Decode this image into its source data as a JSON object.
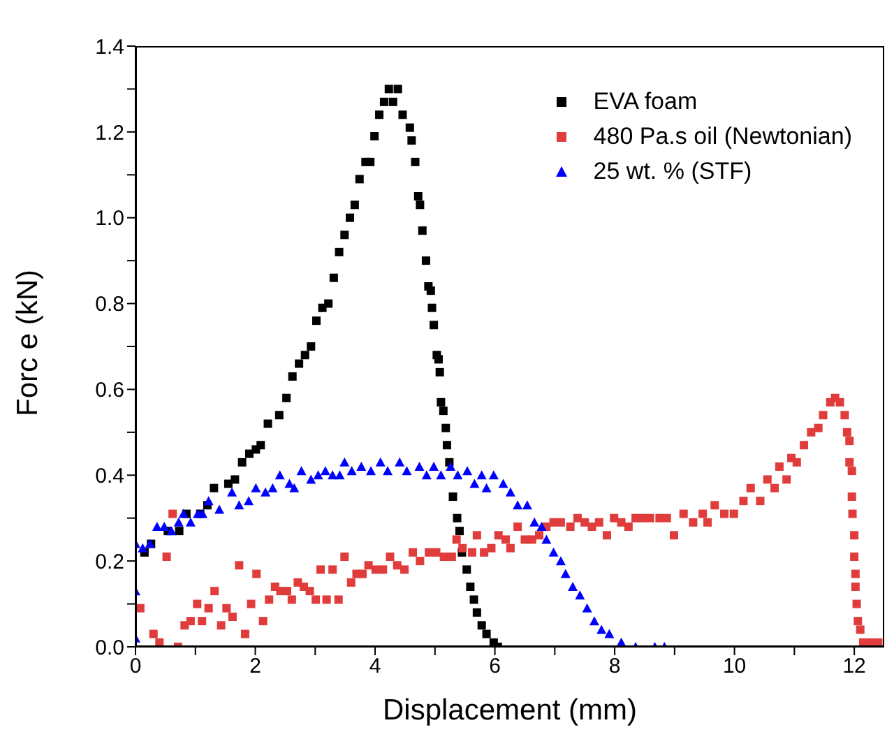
{
  "chart_data": {
    "type": "scatter",
    "xlabel": "Displacement (mm)",
    "ylabel": "Forc e (kN)",
    "xlim": [
      0,
      12.5
    ],
    "ylim": [
      0,
      1.4
    ],
    "xticks": [
      0,
      {
        "value": 1,
        "label": null
      },
      2,
      {
        "value": 3,
        "label": null
      },
      4,
      {
        "value": 5,
        "label": null
      },
      6,
      {
        "value": 7,
        "label": null
      },
      8,
      {
        "value": 9,
        "label": null
      },
      10,
      {
        "value": 11,
        "label": null
      },
      12
    ],
    "yticks": [
      {
        "value": 0,
        "label": "0.0"
      },
      {
        "value": 0.1,
        "label": null
      },
      {
        "value": 0.2,
        "label": "0.2"
      },
      {
        "value": 0.3,
        "label": null
      },
      {
        "value": 0.4,
        "label": "0.4"
      },
      {
        "value": 0.5,
        "label": null
      },
      {
        "value": 0.6,
        "label": "0.6"
      },
      {
        "value": 0.7,
        "label": null
      },
      {
        "value": 0.8,
        "label": "0.8"
      },
      {
        "value": 0.9,
        "label": null
      },
      {
        "value": 1.0,
        "label": "1.0"
      },
      {
        "value": 1.1,
        "label": null
      },
      {
        "value": 1.2,
        "label": "1.2"
      },
      {
        "value": 1.3,
        "label": null
      },
      {
        "value": 1.4,
        "label": "1.4"
      }
    ],
    "grid": false,
    "legend": "top right",
    "series": [
      {
        "name": "EVA foam",
        "color": "#000000",
        "marker": "square",
        "x": [
          0.15,
          0.26,
          0.54,
          0.73,
          0.85,
          1.08,
          1.2,
          1.31,
          1.55,
          1.66,
          1.78,
          1.9,
          2.01,
          2.09,
          2.21,
          2.4,
          2.52,
          2.62,
          2.73,
          2.83,
          2.93,
          3.02,
          3.12,
          3.22,
          3.31,
          3.4,
          3.49,
          3.58,
          3.66,
          3.74,
          3.84,
          3.92,
          3.99,
          4.07,
          4.15,
          4.23,
          4.3,
          4.38,
          4.46,
          4.58,
          4.61,
          4.67,
          4.72,
          4.75,
          4.79,
          4.85,
          4.89,
          4.93,
          4.95,
          4.98,
          5.03,
          5.06,
          5.08,
          5.1,
          5.14,
          5.18,
          5.2,
          5.24,
          5.3,
          5.37,
          5.41,
          5.45,
          5.53,
          5.59,
          5.65,
          5.7,
          5.78,
          5.86,
          5.98,
          6.05
        ],
        "values": [
          0.22,
          0.24,
          0.27,
          0.27,
          0.31,
          0.31,
          0.33,
          0.37,
          0.38,
          0.39,
          0.43,
          0.45,
          0.46,
          0.47,
          0.52,
          0.54,
          0.58,
          0.63,
          0.66,
          0.68,
          0.7,
          0.76,
          0.79,
          0.8,
          0.86,
          0.92,
          0.96,
          1.0,
          1.03,
          1.09,
          1.13,
          1.13,
          1.19,
          1.24,
          1.27,
          1.3,
          1.27,
          1.3,
          1.24,
          1.21,
          1.18,
          1.13,
          1.05,
          1.03,
          0.97,
          0.9,
          0.84,
          0.83,
          0.79,
          0.75,
          0.68,
          0.67,
          0.64,
          0.57,
          0.55,
          0.51,
          0.47,
          0.43,
          0.35,
          0.3,
          0.27,
          0.22,
          0.18,
          0.14,
          0.11,
          0.08,
          0.05,
          0.03,
          0.01,
          0.0
        ]
      },
      {
        "name": "480 Pa.s oil (Newtonian)",
        "color": "#e03c3c",
        "marker": "square",
        "x": [
          0.08,
          0.3,
          0.4,
          0.52,
          0.62,
          0.71,
          0.82,
          0.92,
          1.03,
          1.11,
          1.22,
          1.32,
          1.43,
          1.52,
          1.62,
          1.73,
          1.83,
          1.93,
          2.02,
          2.13,
          2.23,
          2.33,
          2.42,
          2.53,
          2.61,
          2.71,
          2.81,
          2.91,
          3.01,
          3.09,
          3.19,
          3.29,
          3.39,
          3.49,
          3.6,
          3.69,
          3.79,
          3.89,
          4.01,
          4.13,
          4.25,
          4.37,
          4.49,
          4.63,
          4.75,
          4.9,
          5.02,
          5.15,
          5.28,
          5.36,
          5.46,
          5.62,
          5.7,
          5.82,
          5.94,
          6.06,
          6.18,
          6.26,
          6.38,
          6.5,
          6.62,
          6.74,
          6.86,
          6.98,
          7.1,
          7.26,
          7.38,
          7.5,
          7.62,
          7.74,
          7.87,
          7.99,
          8.11,
          8.23,
          8.35,
          8.47,
          8.59,
          8.75,
          8.87,
          8.99,
          9.15,
          9.31,
          9.47,
          9.55,
          9.67,
          9.83,
          9.99,
          10.15,
          10.27,
          10.43,
          10.55,
          10.67,
          10.75,
          10.87,
          10.95,
          11.04,
          11.16,
          11.28,
          11.4,
          11.48,
          11.6,
          11.68,
          11.76,
          11.84,
          11.88,
          11.92,
          11.92,
          11.96,
          11.96,
          11.97,
          12.0,
          12.0,
          12.02,
          12.02,
          12.04,
          12.06,
          12.1,
          12.15,
          12.28,
          12.4
        ],
        "values": [
          0.09,
          0.03,
          0.01,
          0.21,
          0.31,
          0.0,
          0.05,
          0.06,
          0.1,
          0.06,
          0.09,
          0.13,
          0.05,
          0.09,
          0.07,
          0.19,
          0.03,
          0.1,
          0.17,
          0.06,
          0.11,
          0.14,
          0.13,
          0.13,
          0.11,
          0.15,
          0.14,
          0.13,
          0.11,
          0.18,
          0.11,
          0.18,
          0.11,
          0.21,
          0.15,
          0.17,
          0.17,
          0.19,
          0.18,
          0.18,
          0.21,
          0.19,
          0.18,
          0.22,
          0.2,
          0.22,
          0.22,
          0.21,
          0.21,
          0.25,
          0.23,
          0.22,
          0.26,
          0.22,
          0.23,
          0.26,
          0.25,
          0.23,
          0.28,
          0.25,
          0.25,
          0.26,
          0.28,
          0.29,
          0.29,
          0.28,
          0.3,
          0.29,
          0.28,
          0.29,
          0.26,
          0.3,
          0.29,
          0.28,
          0.3,
          0.3,
          0.3,
          0.3,
          0.3,
          0.26,
          0.31,
          0.29,
          0.31,
          0.29,
          0.33,
          0.31,
          0.31,
          0.34,
          0.37,
          0.34,
          0.39,
          0.37,
          0.42,
          0.39,
          0.44,
          0.43,
          0.47,
          0.5,
          0.51,
          0.54,
          0.57,
          0.58,
          0.57,
          0.54,
          0.5,
          0.48,
          0.43,
          0.41,
          0.35,
          0.31,
          0.26,
          0.21,
          0.17,
          0.14,
          0.1,
          0.06,
          0.04,
          0.01,
          0.01,
          0.01
        ]
      },
      {
        "name": "25 wt. % (STF)",
        "color": "#0000ff",
        "marker": "triangle",
        "x": [
          0,
          0,
          0,
          0.12,
          0.24,
          0.36,
          0.48,
          0.6,
          0.72,
          0.8,
          0.92,
          1.04,
          1.12,
          1.22,
          1.4,
          1.61,
          1.73,
          1.89,
          2.01,
          2.17,
          2.29,
          2.41,
          2.57,
          2.65,
          2.77,
          2.93,
          3.05,
          3.17,
          3.29,
          3.41,
          3.49,
          3.61,
          3.77,
          3.93,
          4.09,
          4.21,
          4.41,
          4.53,
          4.74,
          4.86,
          4.98,
          5.1,
          5.26,
          5.38,
          5.54,
          5.66,
          5.78,
          5.86,
          5.98,
          6.14,
          6.26,
          6.38,
          6.54,
          6.66,
          6.78,
          6.86,
          6.98,
          7.1,
          7.18,
          7.3,
          7.42,
          7.54,
          7.66,
          7.78,
          7.91,
          8.11,
          8.35,
          8.67,
          8.83
        ],
        "values": [
          0.24,
          0.13,
          0.02,
          0.23,
          0.24,
          0.28,
          0.28,
          0.27,
          0.29,
          0.31,
          0.29,
          0.31,
          0.31,
          0.34,
          0.32,
          0.36,
          0.33,
          0.34,
          0.37,
          0.36,
          0.37,
          0.4,
          0.38,
          0.37,
          0.41,
          0.39,
          0.4,
          0.41,
          0.4,
          0.4,
          0.43,
          0.41,
          0.42,
          0.41,
          0.43,
          0.41,
          0.43,
          0.41,
          0.42,
          0.4,
          0.42,
          0.4,
          0.42,
          0.4,
          0.41,
          0.38,
          0.4,
          0.37,
          0.4,
          0.38,
          0.36,
          0.33,
          0.33,
          0.29,
          0.28,
          0.25,
          0.22,
          0.2,
          0.17,
          0.14,
          0.12,
          0.09,
          0.06,
          0.04,
          0.03,
          0.01,
          0.0,
          0.0,
          0.0
        ]
      }
    ]
  }
}
